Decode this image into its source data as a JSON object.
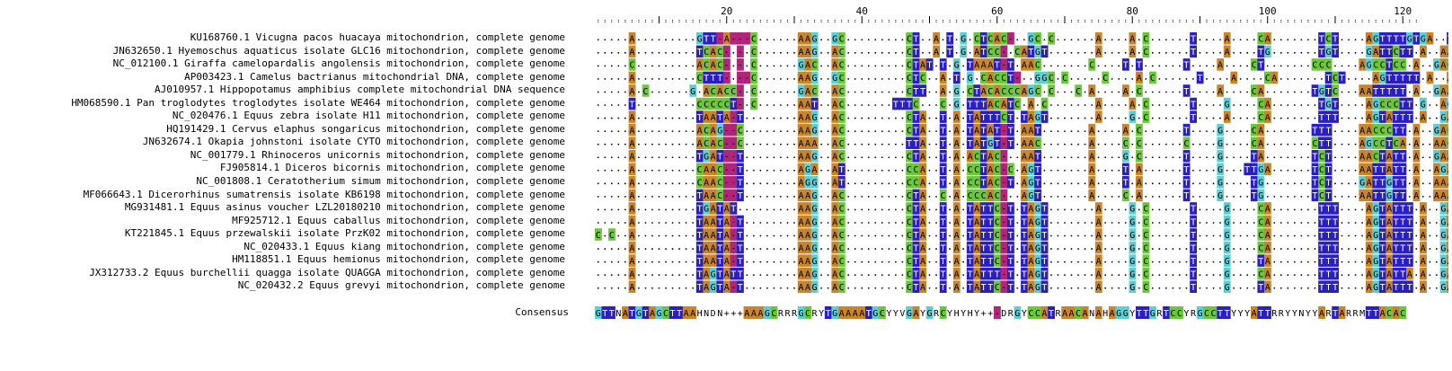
{
  "sequences": [
    "KU168760.1 Vicugna pacos huacaya mitochondrion, complete genome",
    "JN632650.1 Hyemoschus aquaticus isolate GLC16 mitochondrion, complete genome",
    "NC_012100.1 Giraffa camelopardalis angolensis mitochondrion, complete genome",
    "AP003423.1 Camelus bactrianus mitochondrial DNA, complete genome",
    "AJ010957.1 Hippopotamus amphibius complete mitochondrial DNA sequence",
    "HM068590.1 Pan troglodytes troglodytes isolate WE464 mitochondrion, complete genome",
    "NC_020476.1 Equus zebra isolate H11 mitochondrion, complete genome",
    "HQ191429.1 Cervus elaphus songaricus mitochondrion, complete genome",
    "JN632674.1 Okapia johnstoni isolate CYTO mitochondrion, complete genome",
    "NC_001779.1 Rhinoceros unicornis mitochondrion, complete genome",
    "FJ905814.1 Diceros bicornis mitochondrion, complete genome",
    "NC_001808.1 Ceratotherium simum mitochondrion, complete genome",
    "MF066643.1 Dicerorhinus sumatrensis isolate KB6198 mitochondrion, complete genome",
    "MG931481.1 Equus asinus voucher LZL20180210 mitochondrion, complete genome",
    "MF925712.1 Equus caballus mitochondrion, complete genome",
    "KT221845.1 Equus przewalskii isolate PrzK02 mitochondrion, complete genome",
    "NC_020433.1 Equus kiang mitochondrion, complete genome",
    "HM118851.1 Equus hemionus mitochondrion, complete genome",
    "JX312733.2 Equus burchellii quagga isolate QUAGGA mitochondrion, complete genome",
    "NC_020432.2 Equus grevyi mitochondrion, complete genome"
  ],
  "consensus_label": "Consensus",
  "consensus_sequence": "GTTNATGTAGCTTAAHNDN+++AAAGCRRRGCRYTGAAAATGCYYVGAYGRCYHYHY++-DRGYCCATRAACANAHAGGYTTGRTCCYRGCCTTYYYATTRRYYNYYARTARRMTTACAC",
  "ruler": {
    "labels": [
      "20",
      "40",
      "60",
      "80",
      "100",
      "120"
    ],
    "positions": [
      20,
      40,
      60,
      80,
      100,
      120
    ]
  },
  "alignment_rows": [
    ".....A.........GTT-A---C......AAG..GC.........CT..A.T.G.CTCAC-..GC.C......A....A.C......T....A....CA.......TCT....AGTTTTGTGA..TAT",
    ".....A.........TCAC-.-.C......AAG..AC.........CT..A.T.G.ATCC-.CATGT.......A....A.C......T....A....TG.......TGT....GATTCTT.A..AAA",
    ".....C.........ACAC-.-.C......GAC..AC.........CTAT.T.G.TAAAT-T.AAC.......C....T.T......T....A....CT.......CCC....AGCCTCC.A..GAC",
    ".....A.........CTTT-.--C......AAG..GC.........CTC..A.T.G.CACCT-..GGC.C.....C....A.C......T....A....CA.......TCT....AGTTTTT.A..AAA..T",
    ".....A.C......G.ACACC-.C......GAC..AC.........CTT..A.G.CTACACCCAGC.C...C.A....A.C......T....A....CA.......TGTC...AATTTTT.A..GAA",
    ".....T.........CCCCCT-.C......AAT..AC.......TTTC...C.G.TTTACATC.A.C.......A....A.C......T....G....CA.......TGT....AGCCCTT.G..AGA",
    ".....A.........TAATA-T........AAG..AC.........CTA..T.A.TATTTCT.TAGT.......A....G.C......T....A....CA.......TTT....AGTATTT.A..GAA",
    ".....A.........ACAG--C........AAG..AC.........CTA..T.A.TATAT-T.AAT.......A....A.C......T....G....CA.......TTT....AACCCTT.A..GAC",
    ".....A.........ACAC--C........AAA..AC.........TTA..T.A.TATGT-T.AAC.......A....C.C......C....G....CA.......CTT....AGCCTCA.A..AAC",
    ".....A.........TGAT--T........AAG..AC.........CTA..T.A.ACTAC-..AAT.......A....G.C......T....G....TA.......TCT....AACTATT.A..GAA",
    ".....A.........CAAC--T........AGA..AT.........CCA..T.A.CCTAC-C.AGT.......A....T.A......T....G...TTGA......TCT....AATTATT.A..AGA",
    ".....A.........CAAC--T........AGG..AT.........CCA..T.A.CCTAC-T.AGT.......A....T.A......T....G....TG.......TCT....GATTGTT.A..AAA",
    ".....A.........TAAC--T........AAG..AC.........CTA..C.A.CCCAC-..AGT.......A....C.A......T....G....TG.......TCT....AATTGTT.A..AAAC",
    ".....A.........TGATAT.........AAG..AC.........CTA..T.A.TATTC-T.TAGT.......A....G.C......T....G....CA.......TTT....AGTATTT.A..GAA",
    ".....A.........TAATA-T........AAG..AC.........CTA..T.A.TATTC-T.TAGT.......A....G.C......T....G....CA.......TTT....AGTATTT.A..GAA",
    "C.C..A.........TAATA-T........AAG..AC.........CTA..T.A.TATTC-T.TAGT.......A....G.C......T....G....CA.......TTT....AGTATTT.A..GAA",
    ".....A.........TAATA-T........AAG..AC.........CTA..T.A.TATTC-T.TAGT.......A....G.C......T....G....CA.......TTT....AGTATTT.A..GAA",
    ".....A.........TAATA-T........AAG..AC.........CTA..T.A.TATTC-T.TAGT.......A....G.C......T....G....TA.......TTT....AGTATTT.A..GAA",
    ".....A.........TAGTATT........AAG..AC.........CTA..T.A.TATTT-T.TAGT.......A....G.C......T....G....CA.......TTT....AGTATTA.A..GAA",
    ".....A.........TAGTA-T........AAG..AC.........CTA..T.A.TATTC-T.TAGT.......A....G.C......T....G....TA.......TTT....AGTATTT.A..GAA"
  ],
  "colors": {
    "A": "#c8852a",
    "C": "#6cc73c",
    "G": "#5fcfd6",
    "T": "#2a1fc0",
    "gap": "#b0257a",
    "other": "#ffffff"
  }
}
